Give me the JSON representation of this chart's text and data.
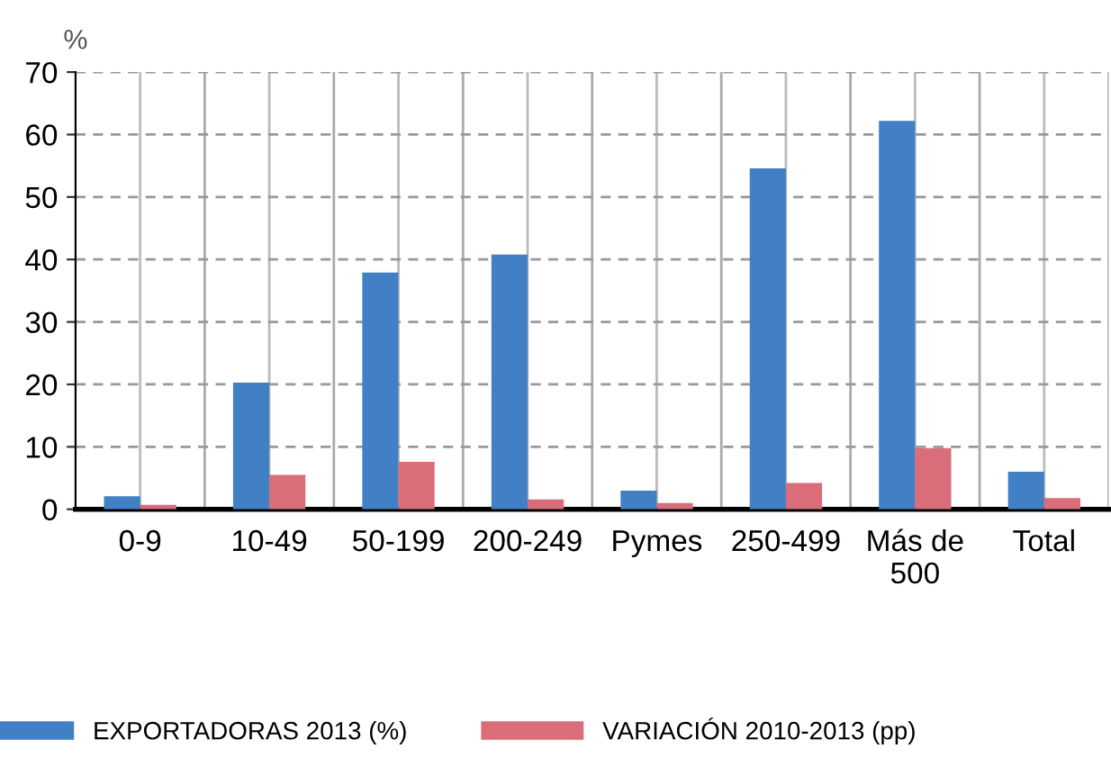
{
  "chart_data": {
    "type": "bar",
    "ylabel": "%",
    "categories": [
      "0-9",
      "10-49",
      "50-199",
      "200-249",
      "Pymes",
      "250-499",
      "Más de\n500",
      "Total"
    ],
    "series": [
      {
        "name": "EXPORTADORAS 2013 (%)",
        "color": "#4180c4",
        "values": [
          2.1,
          20.3,
          37.9,
          40.8,
          3.0,
          54.6,
          62.2,
          6.0
        ]
      },
      {
        "name": "VARIACIÓN 2010-2013 (pp)",
        "color": "#d96d7a",
        "values": [
          0.7,
          5.5,
          7.6,
          1.6,
          1.0,
          4.2,
          9.8,
          1.8
        ]
      }
    ],
    "ylim": [
      0,
      70
    ],
    "yticks": [
      0,
      10,
      20,
      30,
      40,
      50,
      60,
      70
    ],
    "grid": true,
    "legend": "bottom"
  }
}
